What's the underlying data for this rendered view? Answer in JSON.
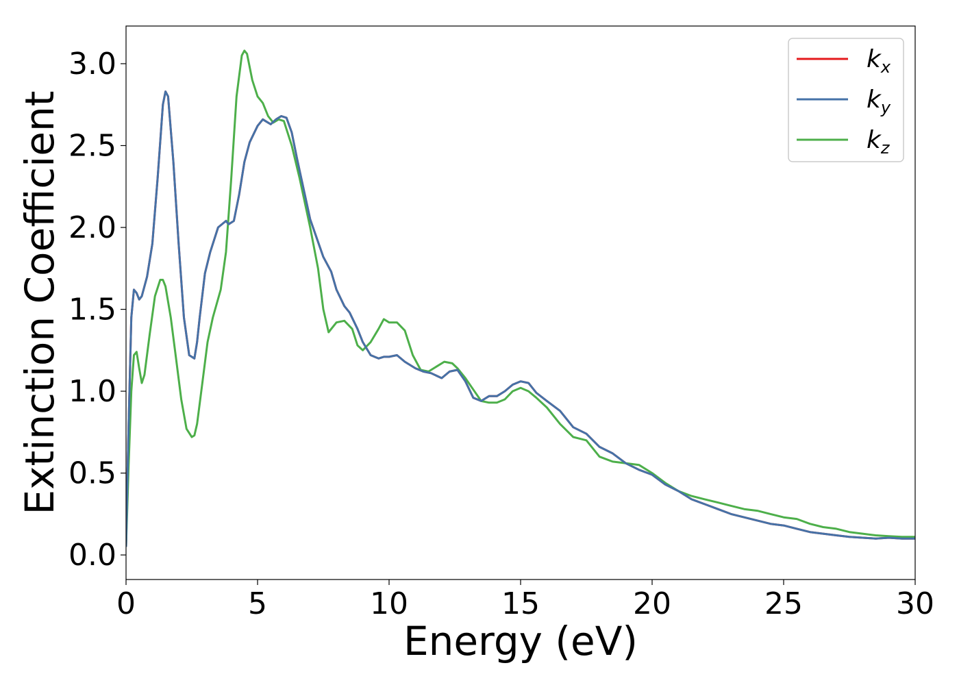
{
  "chart_data": {
    "type": "line",
    "title": "",
    "xlabel": "Energy (eV)",
    "ylabel": "Extinction Coefficient",
    "xlim": [
      0,
      30
    ],
    "ylim": [
      -0.15,
      3.23
    ],
    "xticks": [
      0,
      5,
      10,
      15,
      20,
      25,
      30
    ],
    "xtick_labels": [
      "0",
      "5",
      "10",
      "15",
      "20",
      "25",
      "30"
    ],
    "yticks": [
      0.0,
      0.5,
      1.0,
      1.5,
      2.0,
      2.5,
      3.0
    ],
    "ytick_labels": [
      "0.0",
      "0.5",
      "1.0",
      "1.5",
      "2.0",
      "2.5",
      "3.0"
    ],
    "grid": false,
    "legend_position": "top-right",
    "series": [
      {
        "name": "k",
        "subscript": "x",
        "color": "#e41a1c",
        "x": [
          0,
          0.1,
          0.2,
          0.3,
          0.4,
          0.5,
          0.6,
          0.8,
          1.0,
          1.2,
          1.4,
          1.5,
          1.6,
          1.8,
          2.0,
          2.2,
          2.4,
          2.6,
          2.7,
          2.8,
          3.0,
          3.2,
          3.5,
          3.8,
          3.9,
          4.1,
          4.3,
          4.5,
          4.7,
          5.0,
          5.2,
          5.3,
          5.5,
          5.7,
          5.9,
          6.1,
          6.3,
          6.5,
          7.0,
          7.5,
          7.8,
          8.0,
          8.3,
          8.5,
          8.8,
          9.0,
          9.3,
          9.6,
          9.8,
          10.0,
          10.3,
          10.6,
          11.0,
          11.3,
          11.6,
          12.0,
          12.3,
          12.6,
          12.9,
          13.2,
          13.5,
          13.8,
          14.1,
          14.4,
          14.7,
          15.0,
          15.3,
          15.6,
          16.0,
          16.5,
          17.0,
          17.5,
          18.0,
          18.5,
          19.0,
          19.5,
          20.0,
          20.5,
          21.0,
          21.5,
          22.0,
          22.5,
          23.0,
          23.5,
          24.0,
          24.5,
          25.0,
          25.5,
          26.0,
          26.5,
          27.0,
          27.5,
          28.0,
          28.5,
          29.0,
          29.5,
          30.0
        ],
        "y": [
          0.05,
          0.8,
          1.45,
          1.62,
          1.6,
          1.56,
          1.58,
          1.7,
          1.9,
          2.3,
          2.75,
          2.83,
          2.8,
          2.4,
          1.9,
          1.45,
          1.22,
          1.2,
          1.3,
          1.45,
          1.72,
          1.85,
          2.0,
          2.04,
          2.02,
          2.04,
          2.2,
          2.4,
          2.52,
          2.62,
          2.66,
          2.65,
          2.63,
          2.66,
          2.68,
          2.67,
          2.58,
          2.42,
          2.05,
          1.82,
          1.73,
          1.62,
          1.52,
          1.48,
          1.38,
          1.3,
          1.22,
          1.2,
          1.21,
          1.21,
          1.22,
          1.18,
          1.14,
          1.12,
          1.11,
          1.08,
          1.12,
          1.13,
          1.06,
          0.96,
          0.94,
          0.97,
          0.97,
          1.0,
          1.04,
          1.06,
          1.05,
          0.99,
          0.94,
          0.88,
          0.78,
          0.74,
          0.66,
          0.62,
          0.56,
          0.52,
          0.49,
          0.43,
          0.39,
          0.34,
          0.31,
          0.28,
          0.25,
          0.23,
          0.21,
          0.19,
          0.18,
          0.16,
          0.14,
          0.13,
          0.12,
          0.11,
          0.105,
          0.1,
          0.105,
          0.1,
          0.1
        ]
      },
      {
        "name": "k",
        "subscript": "y",
        "color": "#4572a7",
        "x": [
          0,
          0.1,
          0.2,
          0.3,
          0.4,
          0.5,
          0.6,
          0.8,
          1.0,
          1.2,
          1.4,
          1.5,
          1.6,
          1.8,
          2.0,
          2.2,
          2.4,
          2.6,
          2.7,
          2.8,
          3.0,
          3.2,
          3.5,
          3.8,
          3.9,
          4.1,
          4.3,
          4.5,
          4.7,
          5.0,
          5.2,
          5.3,
          5.5,
          5.7,
          5.9,
          6.1,
          6.3,
          6.5,
          7.0,
          7.5,
          7.8,
          8.0,
          8.3,
          8.5,
          8.8,
          9.0,
          9.3,
          9.6,
          9.8,
          10.0,
          10.3,
          10.6,
          11.0,
          11.3,
          11.6,
          12.0,
          12.3,
          12.6,
          12.9,
          13.2,
          13.5,
          13.8,
          14.1,
          14.4,
          14.7,
          15.0,
          15.3,
          15.6,
          16.0,
          16.5,
          17.0,
          17.5,
          18.0,
          18.5,
          19.0,
          19.5,
          20.0,
          20.5,
          21.0,
          21.5,
          22.0,
          22.5,
          23.0,
          23.5,
          24.0,
          24.5,
          25.0,
          25.5,
          26.0,
          26.5,
          27.0,
          27.5,
          28.0,
          28.5,
          29.0,
          29.5,
          30.0
        ],
        "y": [
          0.05,
          0.8,
          1.45,
          1.62,
          1.6,
          1.56,
          1.58,
          1.7,
          1.9,
          2.3,
          2.75,
          2.83,
          2.8,
          2.4,
          1.9,
          1.45,
          1.22,
          1.2,
          1.3,
          1.45,
          1.72,
          1.85,
          2.0,
          2.04,
          2.02,
          2.04,
          2.2,
          2.4,
          2.52,
          2.62,
          2.66,
          2.65,
          2.63,
          2.66,
          2.68,
          2.67,
          2.58,
          2.42,
          2.05,
          1.82,
          1.73,
          1.62,
          1.52,
          1.48,
          1.38,
          1.3,
          1.22,
          1.2,
          1.21,
          1.21,
          1.22,
          1.18,
          1.14,
          1.12,
          1.11,
          1.08,
          1.12,
          1.13,
          1.06,
          0.96,
          0.94,
          0.97,
          0.97,
          1.0,
          1.04,
          1.06,
          1.05,
          0.99,
          0.94,
          0.88,
          0.78,
          0.74,
          0.66,
          0.62,
          0.56,
          0.52,
          0.49,
          0.43,
          0.39,
          0.34,
          0.31,
          0.28,
          0.25,
          0.23,
          0.21,
          0.19,
          0.18,
          0.16,
          0.14,
          0.13,
          0.12,
          0.11,
          0.105,
          0.1,
          0.105,
          0.1,
          0.1
        ]
      },
      {
        "name": "k",
        "subscript": "z",
        "color": "#4daf4a",
        "x": [
          0,
          0.1,
          0.2,
          0.3,
          0.4,
          0.5,
          0.6,
          0.7,
          0.9,
          1.1,
          1.3,
          1.4,
          1.5,
          1.7,
          1.9,
          2.1,
          2.3,
          2.5,
          2.6,
          2.7,
          2.9,
          3.1,
          3.3,
          3.6,
          3.8,
          4.0,
          4.2,
          4.4,
          4.5,
          4.6,
          4.8,
          5.0,
          5.2,
          5.4,
          5.6,
          5.8,
          6.0,
          6.3,
          6.6,
          7.0,
          7.3,
          7.5,
          7.7,
          8.0,
          8.3,
          8.6,
          8.8,
          9.0,
          9.3,
          9.6,
          9.8,
          10.0,
          10.3,
          10.6,
          10.9,
          11.2,
          11.5,
          11.8,
          12.1,
          12.4,
          12.6,
          12.9,
          13.2,
          13.5,
          13.8,
          14.1,
          14.4,
          14.7,
          15.0,
          15.3,
          15.6,
          16.0,
          16.5,
          17.0,
          17.5,
          18.0,
          18.5,
          19.0,
          19.5,
          20.0,
          20.5,
          21.0,
          21.5,
          22.0,
          22.5,
          23.0,
          23.5,
          24.0,
          24.5,
          25.0,
          25.5,
          26.0,
          26.5,
          27.0,
          27.5,
          28.0,
          28.5,
          29.0,
          29.5,
          30.0
        ],
        "y": [
          0.05,
          0.55,
          1.0,
          1.22,
          1.24,
          1.14,
          1.05,
          1.1,
          1.35,
          1.58,
          1.68,
          1.68,
          1.64,
          1.45,
          1.2,
          0.95,
          0.77,
          0.72,
          0.73,
          0.8,
          1.05,
          1.3,
          1.45,
          1.62,
          1.85,
          2.3,
          2.8,
          3.05,
          3.08,
          3.06,
          2.9,
          2.8,
          2.76,
          2.68,
          2.64,
          2.66,
          2.65,
          2.5,
          2.3,
          2.0,
          1.75,
          1.5,
          1.36,
          1.42,
          1.43,
          1.38,
          1.28,
          1.25,
          1.3,
          1.38,
          1.44,
          1.42,
          1.42,
          1.37,
          1.22,
          1.13,
          1.12,
          1.15,
          1.18,
          1.17,
          1.14,
          1.08,
          1.01,
          0.94,
          0.93,
          0.93,
          0.95,
          1.0,
          1.02,
          1.0,
          0.96,
          0.9,
          0.8,
          0.72,
          0.7,
          0.6,
          0.57,
          0.56,
          0.55,
          0.5,
          0.44,
          0.39,
          0.36,
          0.34,
          0.32,
          0.3,
          0.28,
          0.27,
          0.25,
          0.23,
          0.22,
          0.19,
          0.17,
          0.16,
          0.14,
          0.13,
          0.12,
          0.115,
          0.11,
          0.11
        ]
      }
    ]
  }
}
